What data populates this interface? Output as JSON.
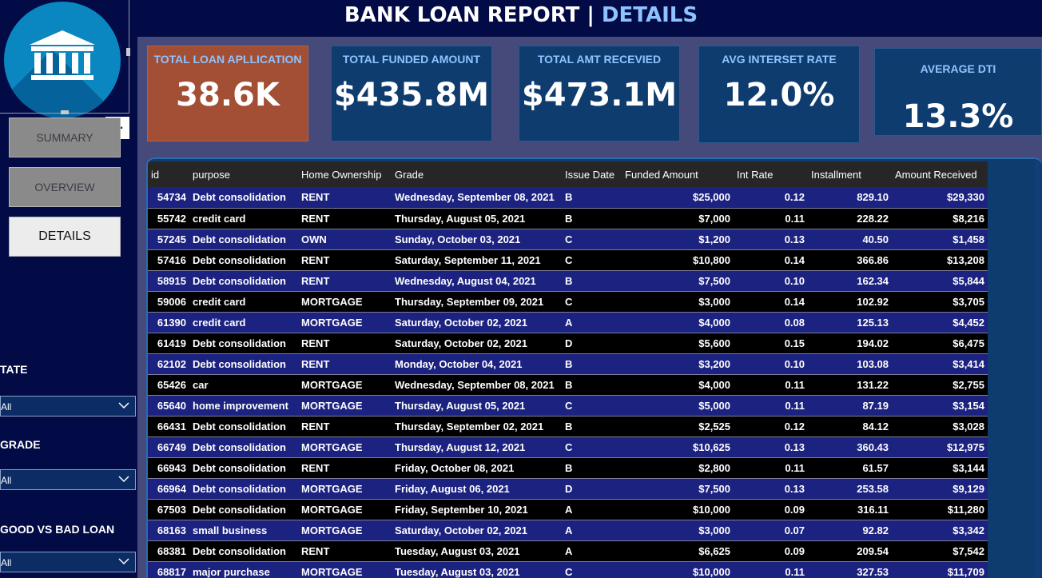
{
  "header": {
    "title_main": "BANK LOAN REPORT | ",
    "title_accent": "DETAILS"
  },
  "nav": {
    "summary": "SUMMARY",
    "overview": "OVERVIEW",
    "details": "DETAILS",
    "more": "…"
  },
  "kpis": [
    {
      "label": "TOTAL LOAN APLLICATION",
      "value": "38.6K"
    },
    {
      "label": "TOTAL FUNDED AMOUNT",
      "value": "$435.8M"
    },
    {
      "label": "TOTAL AMT RECEVIED",
      "value": "$473.1M"
    },
    {
      "label": "AVG INTERSET RATE",
      "value": "12.0%"
    },
    {
      "label": "AVERAGE DTI",
      "value": "13.3%"
    }
  ],
  "slicers": [
    {
      "label": "TATE",
      "value": "All"
    },
    {
      "label": "GRADE",
      "value": "All"
    },
    {
      "label": "GOOD VS BAD LOAN",
      "value": "All"
    }
  ],
  "table": {
    "columns": [
      "id",
      "purpose",
      "Home Ownership",
      "Grade",
      "Issue Date",
      "Funded Amount",
      "Int Rate",
      "Installment",
      "Amount Received"
    ],
    "rows": [
      [
        "54734",
        "Debt consolidation",
        "RENT",
        "Wednesday, September 08, 2021",
        "B",
        "$25,000",
        "0.12",
        "829.10",
        "$29,330"
      ],
      [
        "55742",
        "credit card",
        "RENT",
        "Thursday, August 05, 2021",
        "B",
        "$7,000",
        "0.11",
        "228.22",
        "$8,216"
      ],
      [
        "57245",
        "Debt consolidation",
        "OWN",
        "Sunday, October 03, 2021",
        "C",
        "$1,200",
        "0.13",
        "40.50",
        "$1,458"
      ],
      [
        "57416",
        "Debt consolidation",
        "RENT",
        "Saturday, September 11, 2021",
        "C",
        "$10,800",
        "0.14",
        "366.86",
        "$13,208"
      ],
      [
        "58915",
        "Debt consolidation",
        "RENT",
        "Wednesday, August 04, 2021",
        "B",
        "$7,500",
        "0.10",
        "162.34",
        "$5,844"
      ],
      [
        "59006",
        "credit card",
        "MORTGAGE",
        "Thursday, September 09, 2021",
        "C",
        "$3,000",
        "0.14",
        "102.92",
        "$3,705"
      ],
      [
        "61390",
        "credit card",
        "MORTGAGE",
        "Saturday, October 02, 2021",
        "A",
        "$4,000",
        "0.08",
        "125.13",
        "$4,452"
      ],
      [
        "61419",
        "Debt consolidation",
        "RENT",
        "Saturday, October 02, 2021",
        "D",
        "$5,600",
        "0.15",
        "194.02",
        "$6,475"
      ],
      [
        "62102",
        "Debt consolidation",
        "RENT",
        "Monday, October 04, 2021",
        "B",
        "$3,200",
        "0.10",
        "103.08",
        "$3,414"
      ],
      [
        "65426",
        "car",
        "MORTGAGE",
        "Wednesday, September 08, 2021",
        "B",
        "$4,000",
        "0.11",
        "131.22",
        "$2,755"
      ],
      [
        "65640",
        "home improvement",
        "MORTGAGE",
        "Thursday, August 05, 2021",
        "C",
        "$5,000",
        "0.11",
        "87.19",
        "$3,154"
      ],
      [
        "66431",
        "Debt consolidation",
        "RENT",
        "Thursday, September 02, 2021",
        "B",
        "$2,525",
        "0.12",
        "84.12",
        "$3,028"
      ],
      [
        "66749",
        "Debt consolidation",
        "MORTGAGE",
        "Thursday, August 12, 2021",
        "C",
        "$10,625",
        "0.13",
        "360.43",
        "$12,975"
      ],
      [
        "66943",
        "Debt consolidation",
        "RENT",
        "Friday, October 08, 2021",
        "B",
        "$2,800",
        "0.11",
        "61.57",
        "$3,144"
      ],
      [
        "66964",
        "Debt consolidation",
        "MORTGAGE",
        "Friday, August 06, 2021",
        "D",
        "$7,500",
        "0.13",
        "253.58",
        "$9,129"
      ],
      [
        "67503",
        "Debt consolidation",
        "MORTGAGE",
        "Friday, September 10, 2021",
        "A",
        "$10,000",
        "0.09",
        "316.11",
        "$11,280"
      ],
      [
        "68163",
        "small business",
        "MORTGAGE",
        "Saturday, October 02, 2021",
        "A",
        "$3,000",
        "0.07",
        "92.82",
        "$3,342"
      ],
      [
        "68381",
        "Debt consolidation",
        "RENT",
        "Tuesday, August 03, 2021",
        "A",
        "$6,625",
        "0.09",
        "209.54",
        "$7,542"
      ],
      [
        "68817",
        "major purchase",
        "MORTGAGE",
        "Tuesday, August 03, 2021",
        "C",
        "$10,000",
        "0.11",
        "327.53",
        "$11,709"
      ]
    ]
  },
  "colors": {
    "background": "#020b45",
    "content": "#454a7a",
    "card": "#0f3c6f",
    "card_highlight": "#a24f35",
    "accent": "#8fc3ff",
    "row_odd": "#1b2280",
    "row_even": "#000000"
  },
  "icons": {
    "logo": "bank-building-icon",
    "dropdown": "chevron-down-icon"
  }
}
